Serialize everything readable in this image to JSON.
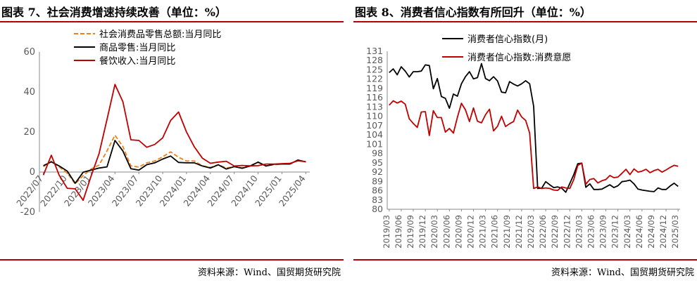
{
  "charts": {
    "left": {
      "title": "图表 7、社会消费增速持续改善（单位：%）",
      "source": "资料来源：Wind、国贸期货研究院"
    },
    "right": {
      "title": "图表 8、消费者信心指数有所回升（单位：%）",
      "source": "资料来源：Wind、国贸期货研究院"
    }
  },
  "chart_data": [
    {
      "type": "line",
      "title": "图表 7、社会消费增速持续改善（单位：%）",
      "ylim": [
        -20,
        60
      ],
      "yticks": [
        -20,
        0,
        20,
        40,
        60
      ],
      "x": [
        "2022/07",
        "2022/08",
        "2022/09",
        "2022/10",
        "2022/11",
        "2022/12",
        "2023/01",
        "2023/02",
        "2023/03",
        "2023/04",
        "2023/05",
        "2023/06",
        "2023/07",
        "2023/08",
        "2023/09",
        "2023/10",
        "2023/11",
        "2023/12",
        "2024/01",
        "2024/02",
        "2024/03",
        "2024/04",
        "2024/05",
        "2024/06",
        "2024/07",
        "2024/08",
        "2024/09",
        "2024/10",
        "2024/11",
        "2024/12",
        "2025/01",
        "2025/02",
        "2025/03",
        "2025/04"
      ],
      "xtick_labels": [
        "2022/07",
        "2022/10",
        "2023/01",
        "2023/04",
        "2023/07",
        "2023/10",
        "2024/01",
        "2024/04",
        "2024/07",
        "2024/10",
        "2025/01",
        "2025/04"
      ],
      "legend_position": "top-left",
      "series": [
        {
          "name": "社会消费品零售总额:当月同比",
          "color": "#f07f1a",
          "dashed": true,
          "values": [
            2.7,
            5.4,
            2.5,
            -0.5,
            -5.9,
            -1.8,
            1.5,
            3.5,
            10.6,
            18.4,
            12.7,
            3.1,
            2.5,
            4.6,
            5.5,
            7.6,
            10.1,
            7.4,
            5.5,
            5.5,
            3.1,
            2.3,
            3.7,
            2.0,
            2.7,
            2.1,
            3.2,
            4.8,
            3.0,
            3.7,
            4.0,
            4.0,
            5.9,
            5.1
          ]
        },
        {
          "name": "商品零售:当月同比",
          "color": "#000000",
          "dashed": false,
          "values": [
            3.2,
            5.1,
            3.0,
            0.5,
            -5.6,
            -0.1,
            1.0,
            2.0,
            2.6,
            15.8,
            10.5,
            1.7,
            1.0,
            3.7,
            4.6,
            6.5,
            8.0,
            4.8,
            4.6,
            4.6,
            3.0,
            2.0,
            3.6,
            1.5,
            2.7,
            1.9,
            3.0,
            5.0,
            3.0,
            3.9,
            4.0,
            4.0,
            6.0,
            5.1
          ]
        },
        {
          "name": "餐饮收入:当月同比",
          "color": "#c00000",
          "dashed": false,
          "values": [
            -1.5,
            8.4,
            -1.7,
            -8.1,
            -8.4,
            -14.1,
            -2.0,
            9.2,
            26.3,
            43.8,
            35.1,
            16.1,
            15.8,
            12.4,
            13.8,
            17.1,
            25.8,
            30.0,
            20.0,
            12.5,
            6.9,
            4.4,
            5.0,
            5.4,
            3.0,
            3.3,
            3.1,
            3.2,
            4.0,
            4.0,
            4.2,
            4.3,
            5.6,
            5.2
          ]
        }
      ]
    },
    {
      "type": "line",
      "title": "图表 8、消费者信心指数有所回升（单位：%）",
      "ylim": [
        80,
        131
      ],
      "yticks": [
        80,
        83,
        86,
        89,
        92,
        95,
        98,
        101,
        104,
        107,
        110,
        113,
        116,
        119,
        122,
        125,
        128,
        131
      ],
      "x": [
        "2019/03",
        "2019/04",
        "2019/05",
        "2019/06",
        "2019/07",
        "2019/08",
        "2019/09",
        "2019/10",
        "2019/11",
        "2019/12",
        "2020/01",
        "2020/02",
        "2020/03",
        "2020/04",
        "2020/05",
        "2020/06",
        "2020/07",
        "2020/08",
        "2020/09",
        "2020/10",
        "2020/11",
        "2020/12",
        "2021/01",
        "2021/02",
        "2021/03",
        "2021/04",
        "2021/05",
        "2021/06",
        "2021/07",
        "2021/08",
        "2021/09",
        "2021/10",
        "2021/11",
        "2021/12",
        "2022/01",
        "2022/02",
        "2022/03",
        "2022/04",
        "2022/05",
        "2022/06",
        "2022/07",
        "2022/08",
        "2022/09",
        "2022/10",
        "2022/11",
        "2022/12",
        "2023/01",
        "2023/02",
        "2023/03",
        "2023/04",
        "2023/05",
        "2023/06",
        "2023/07",
        "2023/08",
        "2023/09",
        "2023/10",
        "2023/11",
        "2023/12",
        "2024/01",
        "2024/02",
        "2024/03",
        "2024/04",
        "2024/05",
        "2024/06",
        "2024/07",
        "2024/08",
        "2024/09",
        "2024/10",
        "2024/11",
        "2024/12",
        "2025/01",
        "2025/02",
        "2025/03"
      ],
      "xtick_labels": [
        "2019/03",
        "2019/06",
        "2019/09",
        "2019/12",
        "2020/03",
        "2020/06",
        "2020/09",
        "2020/12",
        "2021/03",
        "2021/06",
        "2021/09",
        "2021/12",
        "2022/03",
        "2022/06",
        "2022/09",
        "2022/12",
        "2023/03",
        "2023/06",
        "2023/09",
        "2023/12",
        "2024/03",
        "2024/06",
        "2024/09",
        "2024/12",
        "2025/03"
      ],
      "legend_position": "top-left",
      "series": [
        {
          "name": "消费者信心指数(月)",
          "color": "#000000",
          "values": [
            124.1,
            125.3,
            123.4,
            126.0,
            124.6,
            122.7,
            124.4,
            124.4,
            124.6,
            126.6,
            126.4,
            118.9,
            122.2,
            116.4,
            115.8,
            112.6,
            117.2,
            116.5,
            120.5,
            122.8,
            124.4,
            122.1,
            122.5,
            127.0,
            122.2,
            121.5,
            122.8,
            121.4,
            117.8,
            117.6,
            121.2,
            120.4,
            119.8,
            120.5,
            121.5,
            120.5,
            113.2,
            86.7,
            86.8,
            88.9,
            87.9,
            87.0,
            87.2,
            86.8,
            85.5,
            88.3,
            91.2,
            94.7,
            94.9,
            87.1,
            88.2,
            86.4,
            86.4,
            86.5,
            87.2,
            87.9,
            87.0,
            87.6,
            88.9,
            89.1,
            89.4,
            88.2,
            86.5,
            86.2,
            86.0,
            85.8,
            85.7,
            86.9,
            86.4,
            86.4,
            87.5,
            88.4,
            87.4
          ]
        },
        {
          "name": "消费者信心指数:消费意愿",
          "color": "#c00000",
          "values": [
            113.6,
            115.0,
            114.3,
            114.9,
            113.9,
            109.2,
            107.7,
            106.4,
            111.4,
            111.5,
            103.8,
            111.8,
            109.6,
            109.6,
            104.9,
            106.1,
            104.6,
            109.7,
            114.2,
            112.1,
            108.3,
            112.7,
            108.4,
            107.9,
            110.5,
            112.3,
            105.3,
            106.8,
            110.0,
            106.7,
            107.6,
            108.3,
            112.0,
            109.8,
            108.7,
            104.6,
            86.7,
            87.2,
            86.7,
            86.9,
            86.7,
            86.2,
            86.1,
            87.2,
            86.9,
            86.7,
            89.6,
            94.2,
            94.9,
            88.1,
            89.6,
            89.9,
            88.5,
            89.2,
            89.6,
            90.9,
            90.2,
            90.4,
            91.6,
            92.9,
            91.2,
            93.0,
            92.0,
            92.3,
            92.9,
            91.8,
            92.5,
            92.9,
            92.0,
            92.7,
            93.5,
            94.2,
            93.9
          ]
        }
      ]
    }
  ]
}
